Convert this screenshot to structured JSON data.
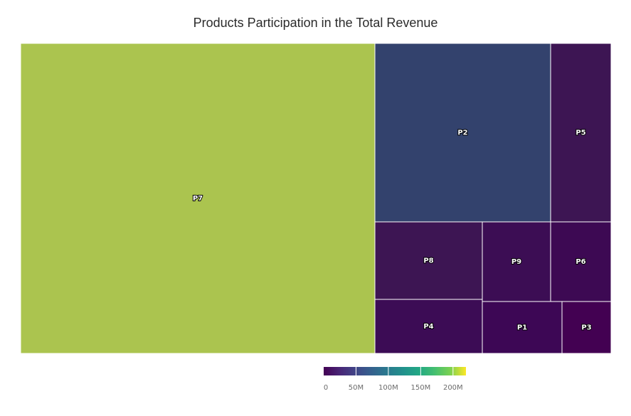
{
  "chart_data": {
    "type": "treemap",
    "title": "Products Participation in the Total Revenue",
    "items": [
      {
        "name": "P7",
        "value": 170,
        "color": "#abc44f"
      },
      {
        "name": "P2",
        "value": 62,
        "color": "#33426d"
      },
      {
        "name": "P5",
        "value": 22,
        "color": "#3d1553"
      },
      {
        "name": "P8",
        "value": 21,
        "color": "#3d1553"
      },
      {
        "name": "P9",
        "value": 19,
        "color": "#3c0d54"
      },
      {
        "name": "P6",
        "value": 18,
        "color": "#3d0953"
      },
      {
        "name": "P4",
        "value": 16,
        "color": "#3c0c55"
      },
      {
        "name": "P1",
        "value": 13,
        "color": "#3d0755"
      },
      {
        "name": "P3",
        "value": 9,
        "color": "#430152"
      }
    ],
    "colorscale": {
      "name": "viridis",
      "range": [
        0,
        220000000
      ],
      "ticks": [
        {
          "value": 0,
          "label": "0"
        },
        {
          "value": 50000000,
          "label": "50M"
        },
        {
          "value": 100000000,
          "label": "100M"
        },
        {
          "value": 150000000,
          "label": "150M"
        },
        {
          "value": 200000000,
          "label": "200M"
        }
      ]
    }
  }
}
